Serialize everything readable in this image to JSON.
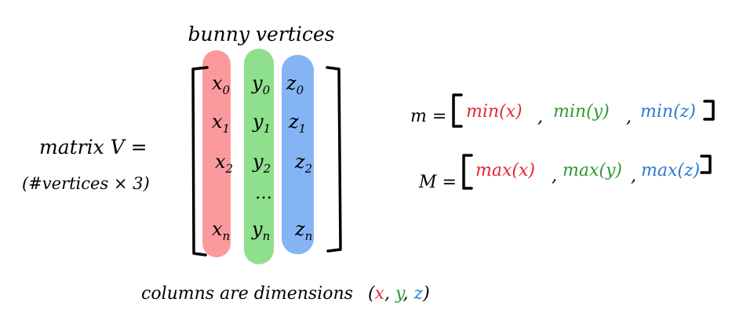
{
  "title": "bunny vertices",
  "matrix_label": "matrix V =",
  "matrix_sublabel": "(#vertices × 3)",
  "columns": [
    {
      "name": "x",
      "color": "#fb9a9c",
      "entries": [
        {
          "base": "x",
          "sub": "0"
        },
        {
          "base": "x",
          "sub": "1"
        },
        {
          "base": "x",
          "sub": "2"
        },
        {
          "base": "x",
          "sub": "n"
        }
      ]
    },
    {
      "name": "y",
      "color": "#8ee08c",
      "entries": [
        {
          "base": "y",
          "sub": "0"
        },
        {
          "base": "y",
          "sub": "1"
        },
        {
          "base": "y",
          "sub": "2"
        },
        {
          "base": "…",
          "sub": ""
        },
        {
          "base": "y",
          "sub": "n"
        }
      ]
    },
    {
      "name": "z",
      "color": "#84b4f4",
      "entries": [
        {
          "base": "z",
          "sub": "0"
        },
        {
          "base": "z",
          "sub": "1"
        },
        {
          "base": "z",
          "sub": "2"
        },
        {
          "base": "z",
          "sub": "n"
        }
      ]
    }
  ],
  "caption": {
    "prefix": "columns are dimensions",
    "open": "(",
    "x": "x",
    "y": "y",
    "z": "z",
    "sep": ",",
    "close": ")"
  },
  "min_row": {
    "lhs": "m =",
    "items": [
      "min(x)",
      "min(y)",
      "min(z)"
    ],
    "sep": ","
  },
  "max_row": {
    "lhs": "M =",
    "items": [
      "max(x)",
      "max(y)",
      "max(z)"
    ],
    "sep": ","
  },
  "colors": {
    "red": "#e5292f",
    "green": "#2f9a33",
    "blue": "#2b79d6",
    "ink": "#000000"
  }
}
